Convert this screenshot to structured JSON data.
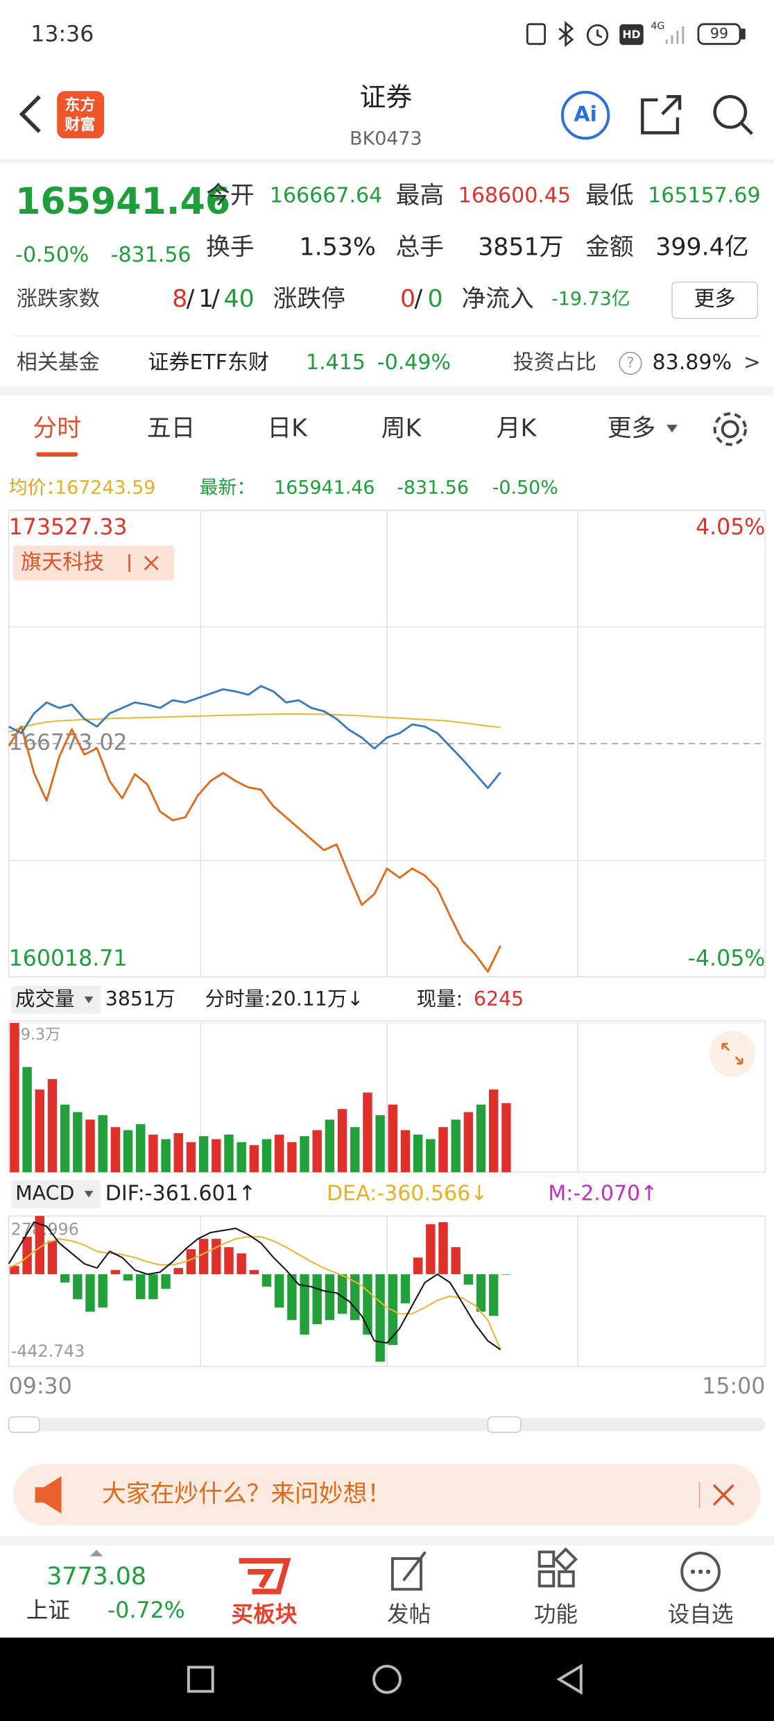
{
  "status": {
    "time": "13:36",
    "hd": "HD",
    "network": "4G",
    "battery": "99"
  },
  "header": {
    "logo": [
      "东方",
      "财富"
    ],
    "title": "证券",
    "code": "BK0473",
    "ai": "Ai"
  },
  "quote": {
    "price": "165941.46",
    "change_pct": "-0.50%",
    "change": "-831.56",
    "stats": [
      {
        "label": "今开",
        "value": "166667.64"
      },
      {
        "label": "最高",
        "value": "168600.45"
      },
      {
        "label": "最低",
        "value": "165157.69"
      },
      {
        "label": "换手",
        "value": "1.53%"
      },
      {
        "label": "总手",
        "value": "3851万"
      },
      {
        "label": "金额",
        "value": "399.4亿"
      }
    ],
    "breadth": {
      "label": "涨跌家数",
      "up": "8",
      "flat": "1",
      "down": "40",
      "separator": "/"
    },
    "limit": {
      "label": "涨跌停",
      "up": "0",
      "down": "0",
      "separator": "/"
    },
    "net_inflow": {
      "label": "净流入",
      "value": "-19.73亿"
    },
    "more": "更多"
  },
  "fund": {
    "label": "相关基金",
    "name": "证券ETF东财",
    "price": "1.415",
    "change": "-0.49%",
    "ratio_label": "投资占比",
    "help": "?",
    "ratio": "83.89%",
    "arrow": ">"
  },
  "tabs": [
    "分时",
    "五日",
    "日K",
    "周K",
    "月K",
    "更多"
  ],
  "info": {
    "avg": "167243.59",
    "latest": "165941.46",
    "change": "-831.56",
    "change_pct": "-0.50%"
  },
  "chart_data": [
    {
      "type": "line",
      "ylim": [
        160018.71,
        173527.33
      ],
      "yticks": [
        173527.33,
        166773.02,
        160018.71
      ],
      "y2lim": [
        -4.05,
        4.05
      ],
      "y2ticks": [
        {
          "value": 4.05,
          "label": "4.05%"
        },
        {
          "value": -4.05,
          "label": "-4.05%"
        }
      ],
      "series": [
        {
          "name": "最新：",
          "color": "#3a78c0",
          "values": [
            167265.7,
            167074.9,
            167647.1,
            167964.9,
            167806.0,
            167901.3,
            167488.1,
            167265.7,
            167647.1,
            167806.0,
            167964.9,
            167901.3,
            167806.0,
            168028.5,
            167964.9,
            168092.1,
            168219.2,
            168346.3,
            168282.8,
            168187.4,
            168441.7,
            168282.8,
            167964.9,
            168028.5,
            167806.0,
            167710.6,
            167488.1,
            167170.3,
            166947.8,
            166630.0,
            166947.8,
            167074.9,
            167329.2,
            167265.7,
            167074.9,
            166693.5,
            166312.1,
            165898.9,
            165485.7,
            165941.46
          ]
        },
        {
          "name": "均价：",
          "color": "#e8b830",
          "values": [
            167100,
            167250,
            167330,
            167400,
            167430,
            167450,
            167470,
            167480,
            167500,
            167510,
            167520,
            167530,
            167540,
            167550,
            167560,
            167570,
            167580,
            167590,
            167600,
            167610,
            167620,
            167625,
            167630,
            167630,
            167625,
            167620,
            167610,
            167595,
            167575,
            167550,
            167530,
            167510,
            167490,
            167470,
            167450,
            167420,
            167380,
            167330,
            167280,
            167243.59
          ]
        },
        {
          "name": "旗天科技",
          "color": "#e06a1a",
          "axis": "y2",
          "values": [
            -0.04,
            0.3,
            -0.51,
            -0.99,
            -0.23,
            0.25,
            -0.19,
            -0.08,
            -0.65,
            -0.95,
            -0.53,
            -0.71,
            -1.18,
            -1.33,
            -1.28,
            -0.9,
            -0.65,
            -0.51,
            -0.65,
            -0.76,
            -0.8,
            -1.09,
            -1.28,
            -1.47,
            -1.66,
            -1.85,
            -1.75,
            -2.29,
            -2.8,
            -2.61,
            -2.17,
            -2.33,
            -2.17,
            -2.29,
            -2.52,
            -2.99,
            -3.43,
            -3.66,
            -3.96,
            -3.51
          ]
        }
      ]
    },
    {
      "type": "bar",
      "selector": "成交量",
      "total": "3851万",
      "minute_volume": "分时量:20.11万↓",
      "current_label": "现量:",
      "current": "6245",
      "ylim": [
        0,
        99.3
      ],
      "yticks": [
        {
          "value": 99.3,
          "label": "99.3万"
        }
      ],
      "values": [
        99.3,
        70,
        55,
        62,
        45,
        40,
        35,
        38,
        30,
        28,
        32,
        25,
        22,
        26,
        20,
        24,
        22,
        25,
        20,
        18,
        22,
        25,
        20,
        24,
        28,
        35,
        42,
        30,
        53,
        38,
        45,
        28,
        25,
        22,
        30,
        35,
        40,
        45,
        55,
        46
      ],
      "colors": [
        "#e0302a",
        "#22a03a",
        "#e0302a",
        "#e0302a",
        "#22a03a",
        "#22a03a",
        "#e0302a",
        "#22a03a",
        "#e0302a",
        "#22a03a",
        "#22a03a",
        "#e0302a",
        "#22a03a",
        "#e0302a",
        "#e0302a",
        "#22a03a",
        "#e0302a",
        "#22a03a",
        "#22a03a",
        "#e0302a",
        "#22a03a",
        "#e0302a",
        "#e0302a",
        "#22a03a",
        "#e0302a",
        "#22a03a",
        "#e0302a",
        "#22a03a",
        "#e0302a",
        "#22a03a",
        "#e0302a",
        "#e0302a",
        "#22a03a",
        "#22a03a",
        "#e0302a",
        "#22a03a",
        "#e0302a",
        "#22a03a",
        "#e0302a",
        "#e0302a"
      ]
    },
    {
      "type": "macd",
      "selector": "MACD",
      "ylim": [
        -442.743,
        278.996
      ],
      "yticks": [
        278.996,
        -442.743
      ],
      "up_color": "#e0302a",
      "down_color": "#22a03a",
      "series": [
        {
          "label": "DIF:-361.601↑",
          "color": "#111111",
          "values": [
            50,
            150,
            250,
            230,
            150,
            100,
            50,
            30,
            110,
            80,
            20,
            0,
            10,
            60,
            120,
            170,
            200,
            210,
            220,
            190,
            150,
            80,
            20,
            -50,
            -60,
            -80,
            -90,
            -130,
            -200,
            -320,
            -330,
            -260,
            -150,
            -40,
            0,
            -40,
            -140,
            -240,
            -320,
            -361.601
          ]
        },
        {
          "label": "DEA:-360.566↓",
          "color": "#e8b830",
          "values": [
            30,
            60,
            110,
            150,
            170,
            160,
            140,
            110,
            100,
            95,
            80,
            60,
            45,
            45,
            60,
            85,
            115,
            145,
            170,
            180,
            180,
            160,
            130,
            95,
            60,
            30,
            5,
            -20,
            -55,
            -110,
            -160,
            -190,
            -190,
            -160,
            -125,
            -105,
            -115,
            -150,
            -220,
            -360.566
          ]
        },
        {
          "label": "M:-2.070↑",
          "color": "#c030c0",
          "values": [
            40,
            180,
            280,
            160,
            -40,
            -120,
            -180,
            -160,
            20,
            -30,
            -120,
            -120,
            -70,
            30,
            120,
            170,
            170,
            130,
            100,
            20,
            -60,
            -160,
            -220,
            -290,
            -240,
            -220,
            -190,
            -220,
            -290,
            -420,
            -340,
            -140,
            80,
            240,
            250,
            130,
            -50,
            -180,
            -200,
            -2.07
          ]
        }
      ]
    }
  ],
  "time_axis": [
    "09:30",
    "15:00"
  ],
  "banner": "大家在炒什么？来问妙想！",
  "bottom_nav": {
    "index_value": "3773.08",
    "index_name": "上证",
    "index_change": "-0.72%",
    "items": [
      "买板块",
      "发帖",
      "功能",
      "设自选"
    ]
  }
}
